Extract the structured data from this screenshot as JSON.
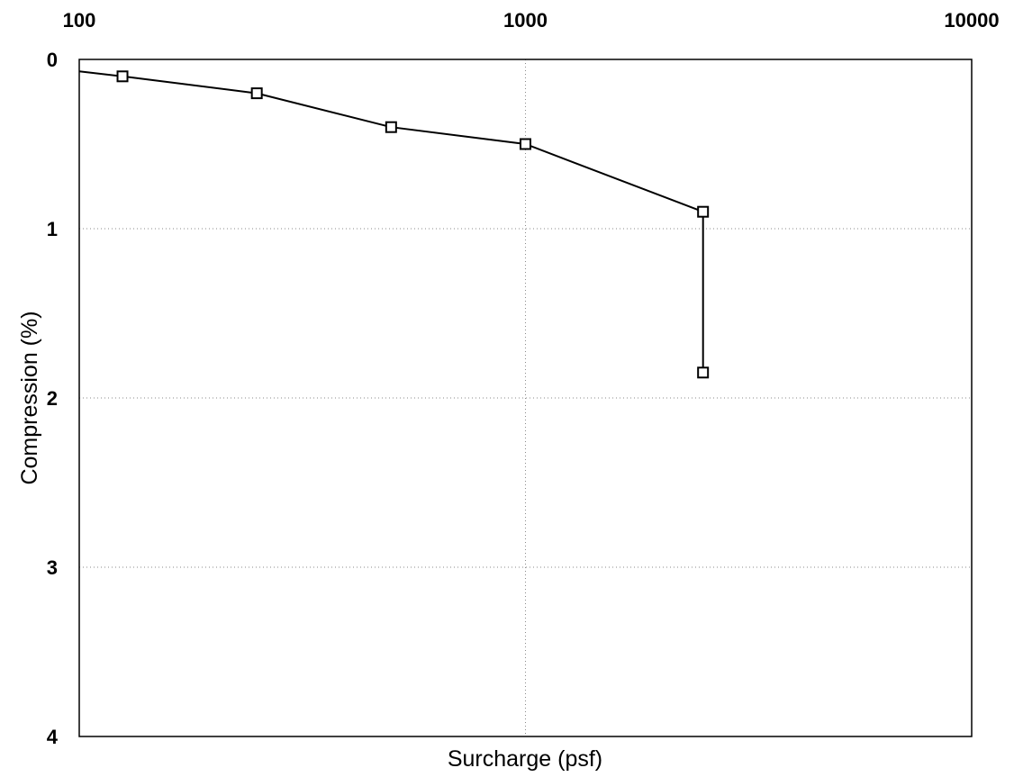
{
  "chart_data": {
    "type": "line",
    "title": "",
    "xlabel": "Surcharge (psf)",
    "ylabel": "Compression (%)",
    "x_scale": "log",
    "x_axis_position": "top",
    "y_inverted": true,
    "xlim": [
      100,
      10000
    ],
    "ylim": [
      0,
      4
    ],
    "x_ticks": [
      100,
      1000,
      10000
    ],
    "x_tick_labels": [
      "100",
      "1000",
      "10000"
    ],
    "y_ticks": [
      0,
      1,
      2,
      3,
      4
    ],
    "y_tick_labels": [
      "0",
      "1",
      "2",
      "3",
      "4"
    ],
    "grid": true,
    "legend": "none",
    "series": [
      {
        "line_start": {
          "x": 100,
          "y": 0.07
        },
        "points": [
          {
            "x": 125,
            "y": 0.1
          },
          {
            "x": 250,
            "y": 0.2
          },
          {
            "x": 500,
            "y": 0.4
          },
          {
            "x": 1000,
            "y": 0.5
          },
          {
            "x": 2500,
            "y": 0.9
          },
          {
            "x": 2500,
            "y": 1.85
          }
        ],
        "color": "#000000",
        "marker": "open-square"
      }
    ]
  }
}
